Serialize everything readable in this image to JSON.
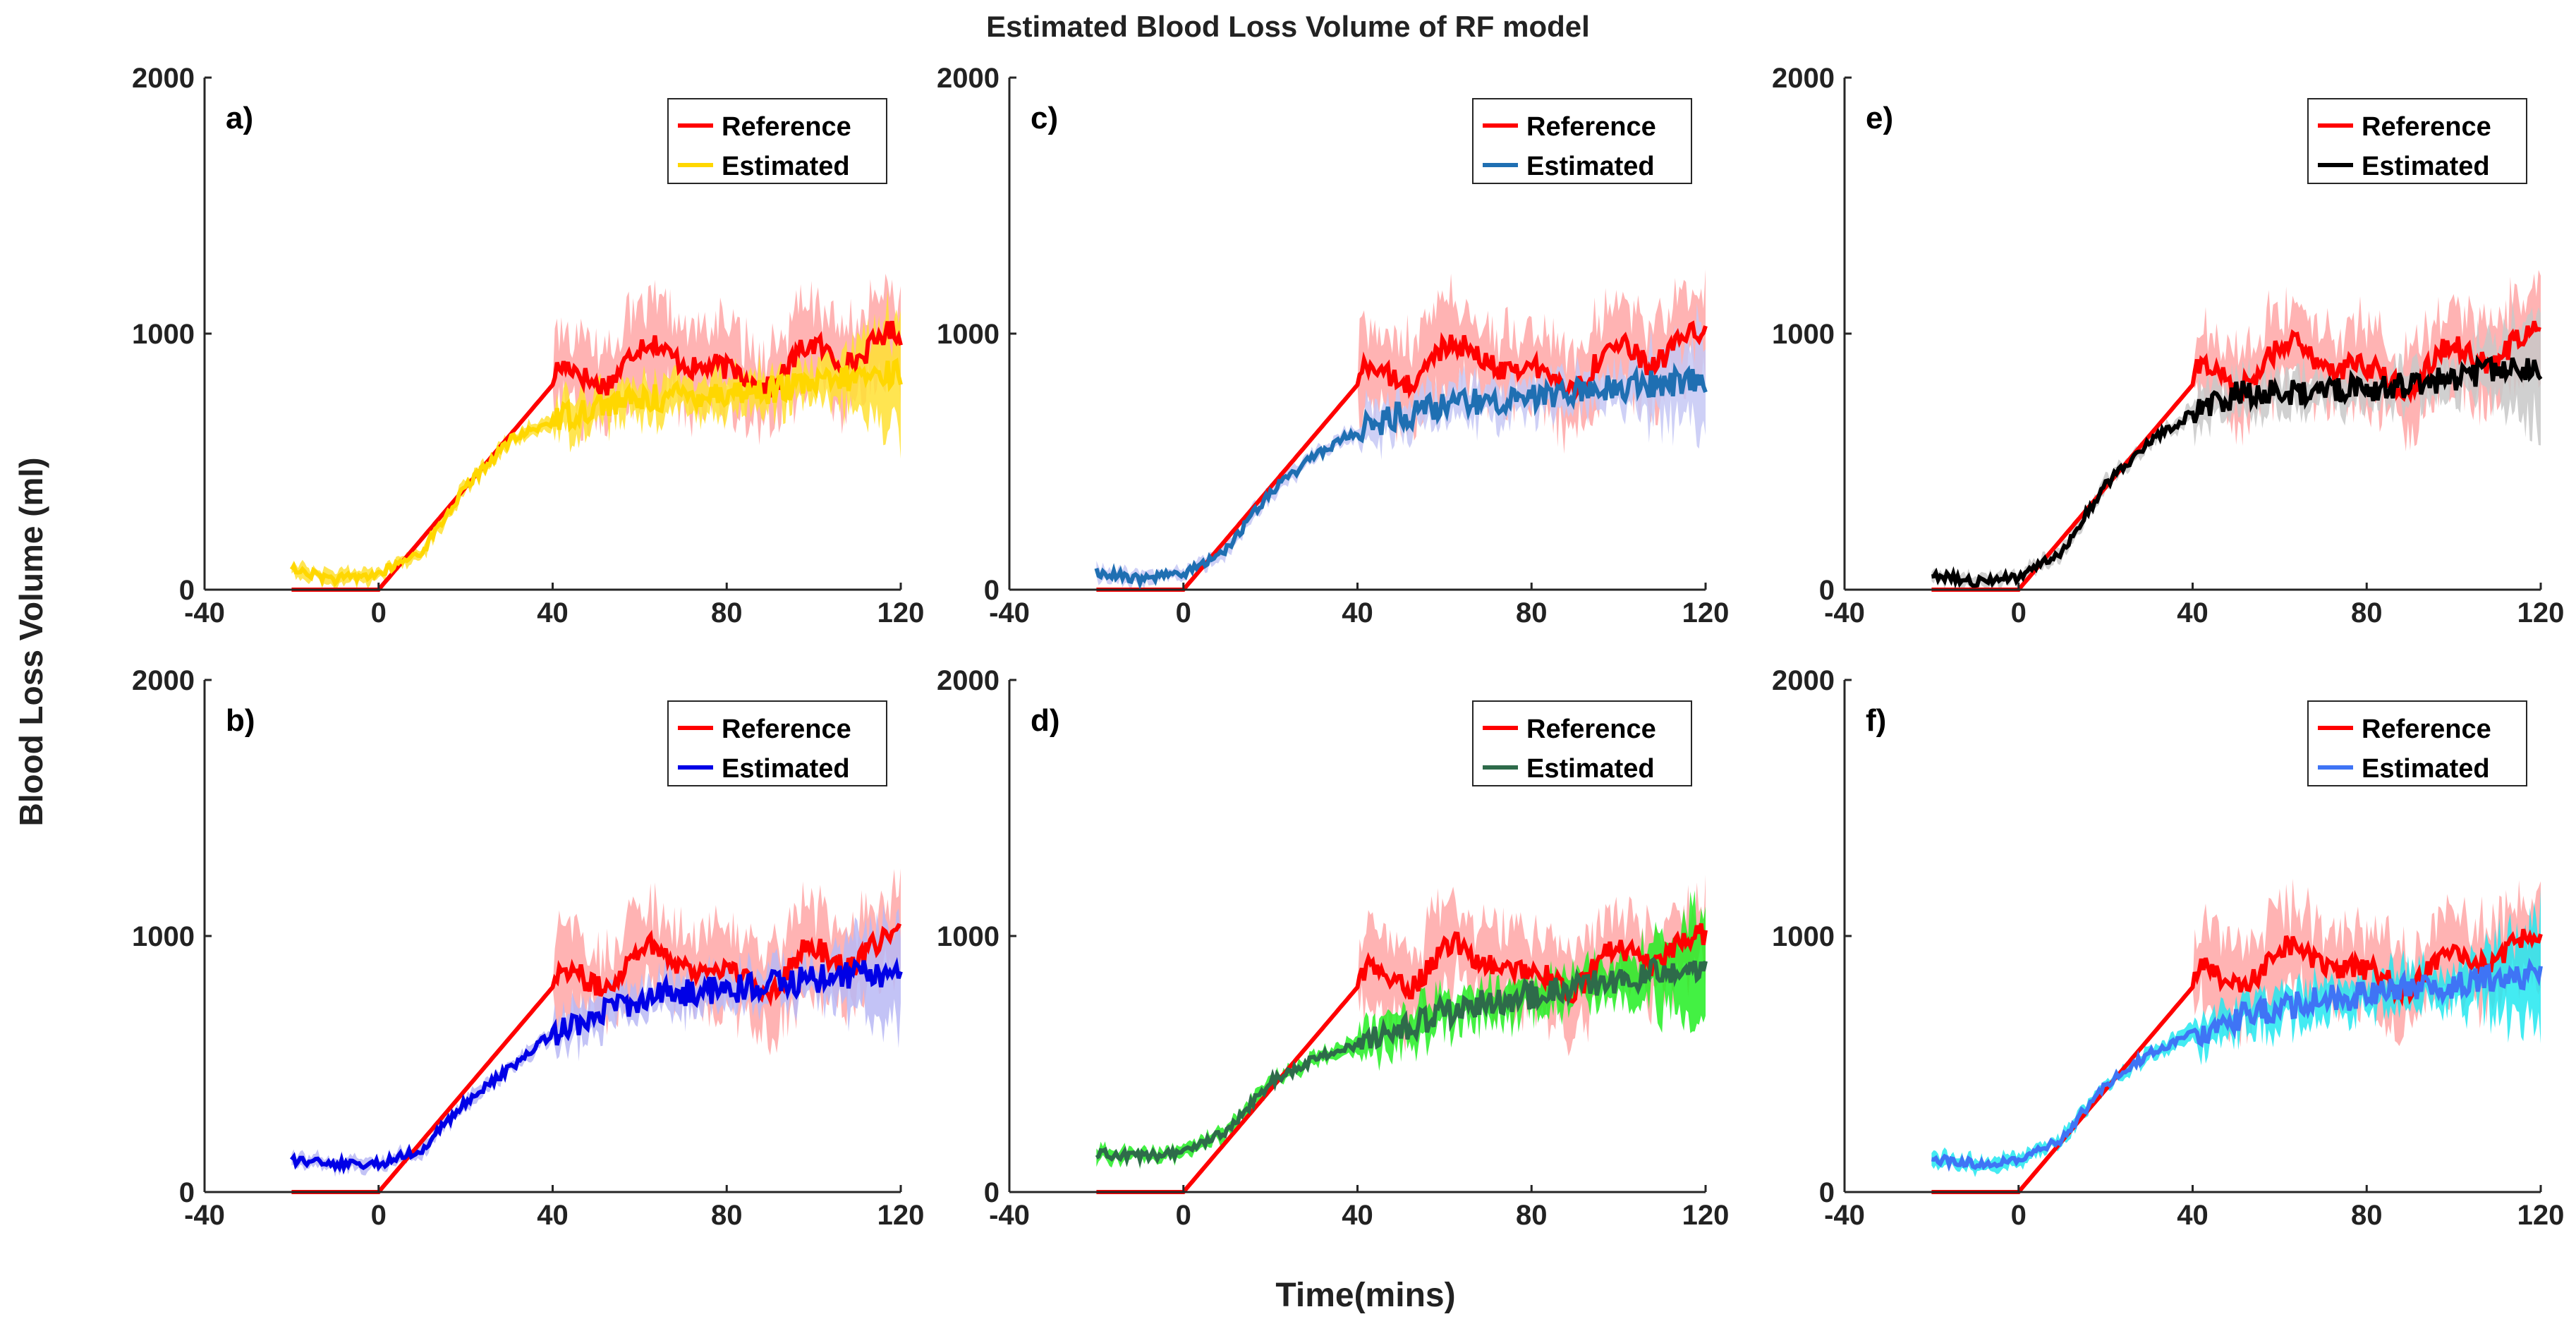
{
  "figure": {
    "title": "Estimated Blood Loss Volume of RF model",
    "xlabel": "Time(mins)",
    "ylabel": "Blood Loss Volume (ml)"
  },
  "colors": {
    "reference": "#ff0000",
    "reference_band": "#ffb3b3"
  },
  "chart_data": [
    {
      "type": "line",
      "panel": "a)",
      "xlim": [
        -40,
        120
      ],
      "ylim": [
        0,
        2000
      ],
      "xticks": [
        -40,
        0,
        40,
        80,
        120
      ],
      "yticks": [
        0,
        1000,
        2000
      ],
      "legend": [
        "Reference",
        "Estimated"
      ],
      "legend_placement": "top-right",
      "est_color": "#ffd700",
      "est_band": "#ffe033",
      "reference": {
        "x": [
          -20,
          0,
          40,
          50,
          60,
          70,
          80,
          90,
          100,
          110,
          120
        ],
        "y": [
          0,
          0,
          800,
          850,
          900,
          950,
          800,
          850,
          900,
          950,
          950
        ]
      },
      "estimated": {
        "x": [
          -20,
          -10,
          0,
          10,
          20,
          30,
          40,
          50,
          60,
          70,
          80,
          90,
          100,
          110,
          120
        ],
        "y": [
          80,
          40,
          60,
          150,
          400,
          580,
          660,
          720,
          740,
          760,
          770,
          780,
          800,
          830,
          850
        ]
      }
    },
    {
      "type": "line",
      "panel": "b)",
      "xlim": [
        -40,
        120
      ],
      "ylim": [
        0,
        2000
      ],
      "xticks": [
        -40,
        0,
        40,
        80,
        120
      ],
      "yticks": [
        0,
        1000,
        2000
      ],
      "legend": [
        "Reference",
        "Estimated"
      ],
      "legend_placement": "top-right",
      "est_color": "#0000e6",
      "est_band": "#b8b8f5",
      "reference": {
        "x": [
          -20,
          0,
          40,
          50,
          60,
          70,
          80,
          90,
          100,
          110,
          120
        ],
        "y": [
          0,
          0,
          800,
          850,
          900,
          950,
          800,
          850,
          900,
          950,
          950
        ]
      },
      "estimated": {
        "x": [
          -20,
          -10,
          0,
          10,
          20,
          30,
          40,
          50,
          60,
          70,
          80,
          90,
          100,
          110,
          120
        ],
        "y": [
          120,
          110,
          110,
          170,
          350,
          480,
          620,
          700,
          750,
          780,
          790,
          810,
          830,
          850,
          850
        ]
      }
    },
    {
      "type": "line",
      "panel": "c)",
      "xlim": [
        -40,
        120
      ],
      "ylim": [
        0,
        2000
      ],
      "xticks": [
        -40,
        0,
        40,
        80,
        120
      ],
      "yticks": [
        0,
        1000,
        2000
      ],
      "legend": [
        "Reference",
        "Estimated"
      ],
      "legend_placement": "top-right",
      "est_color": "#1f6fb2",
      "est_band": "#c5c8f5",
      "reference": {
        "x": [
          -20,
          0,
          40,
          50,
          60,
          70,
          80,
          90,
          100,
          110,
          120
        ],
        "y": [
          0,
          0,
          800,
          850,
          900,
          950,
          800,
          850,
          900,
          950,
          950
        ]
      },
      "estimated": {
        "x": [
          -20,
          -10,
          0,
          10,
          20,
          30,
          40,
          50,
          60,
          70,
          80,
          90,
          100,
          110,
          120
        ],
        "y": [
          70,
          40,
          60,
          160,
          380,
          520,
          620,
          680,
          720,
          740,
          760,
          770,
          790,
          810,
          810
        ]
      }
    },
    {
      "type": "line",
      "panel": "d)",
      "xlim": [
        -40,
        120
      ],
      "ylim": [
        0,
        2000
      ],
      "xticks": [
        -40,
        0,
        40,
        80,
        120
      ],
      "yticks": [
        0,
        1000,
        2000
      ],
      "legend": [
        "Reference",
        "Estimated"
      ],
      "legend_placement": "top-right",
      "est_color": "#2e6b4a",
      "est_band": "#22ee22",
      "reference": {
        "x": [
          -20,
          0,
          40,
          50,
          60,
          70,
          80,
          90,
          100,
          110,
          120
        ],
        "y": [
          0,
          0,
          800,
          850,
          900,
          950,
          800,
          850,
          900,
          950,
          950
        ]
      },
      "estimated": {
        "x": [
          -20,
          -10,
          0,
          10,
          20,
          30,
          40,
          50,
          60,
          70,
          80,
          90,
          100,
          110,
          120
        ],
        "y": [
          150,
          140,
          150,
          240,
          430,
          520,
          580,
          640,
          700,
          740,
          770,
          800,
          830,
          860,
          880
        ]
      }
    },
    {
      "type": "line",
      "panel": "e)",
      "xlim": [
        -40,
        120
      ],
      "ylim": [
        0,
        2000
      ],
      "xticks": [
        -40,
        0,
        40,
        80,
        120
      ],
      "yticks": [
        0,
        1000,
        2000
      ],
      "legend": [
        "Reference",
        "Estimated"
      ],
      "legend_placement": "top-right",
      "est_color": "#000000",
      "est_band": "#c8c8c8",
      "reference": {
        "x": [
          -20,
          0,
          40,
          50,
          60,
          70,
          80,
          90,
          100,
          110,
          120
        ],
        "y": [
          0,
          0,
          800,
          850,
          900,
          950,
          800,
          850,
          900,
          950,
          950
        ]
      },
      "estimated": {
        "x": [
          -20,
          -10,
          0,
          10,
          20,
          30,
          40,
          50,
          60,
          70,
          80,
          90,
          100,
          110,
          120
        ],
        "y": [
          60,
          30,
          50,
          150,
          410,
          580,
          690,
          760,
          770,
          780,
          790,
          800,
          830,
          850,
          850
        ]
      }
    },
    {
      "type": "line",
      "panel": "f)",
      "xlim": [
        -40,
        120
      ],
      "ylim": [
        0,
        2000
      ],
      "xticks": [
        -40,
        0,
        40,
        80,
        120
      ],
      "yticks": [
        0,
        1000,
        2000
      ],
      "legend": [
        "Reference",
        "Estimated"
      ],
      "legend_placement": "top-right",
      "est_color": "#3f74f5",
      "est_band": "#22e8f0",
      "reference": {
        "x": [
          -20,
          0,
          40,
          50,
          60,
          70,
          80,
          90,
          100,
          110,
          120
        ],
        "y": [
          0,
          0,
          800,
          850,
          900,
          950,
          800,
          850,
          900,
          950,
          950
        ]
      },
      "estimated": {
        "x": [
          -20,
          -10,
          0,
          10,
          20,
          30,
          40,
          50,
          60,
          70,
          80,
          90,
          100,
          110,
          120
        ],
        "y": [
          130,
          110,
          120,
          210,
          420,
          540,
          620,
          680,
          720,
          750,
          770,
          790,
          810,
          840,
          850
        ]
      }
    }
  ]
}
